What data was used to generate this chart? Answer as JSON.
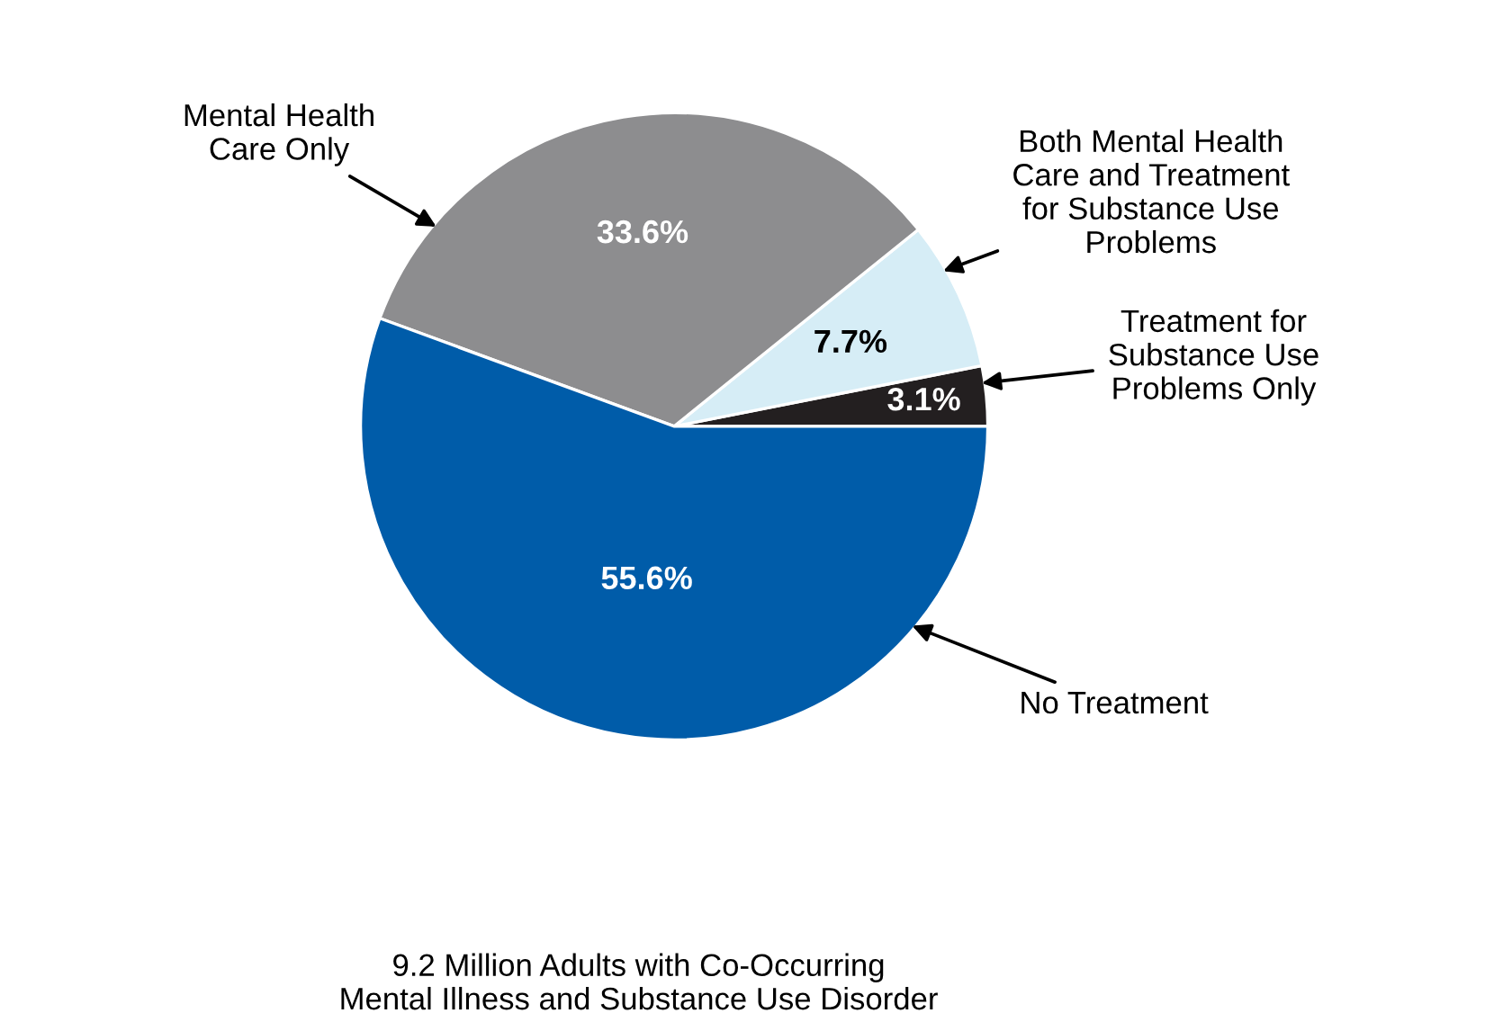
{
  "chart_data": {
    "type": "pie",
    "categories": [
      "Treatment for\nSubstance Use\nProblems Only",
      "Both Mental Health\nCare and Treatment\nfor Substance Use\nProblems",
      "Mental Health\nCare Only",
      "No Treatment"
    ],
    "values": [
      3.1,
      7.7,
      33.6,
      55.6
    ],
    "value_labels": [
      "3.1%",
      "7.7%",
      "33.6%",
      "55.6%"
    ],
    "colors": [
      "#231f20",
      "#d6edf6",
      "#8d8d8f",
      "#005ca9"
    ],
    "annotations": [
      "9.2 Million Adults with Co-Occurring\nMental Illness and Substance Use Disorder"
    ]
  }
}
